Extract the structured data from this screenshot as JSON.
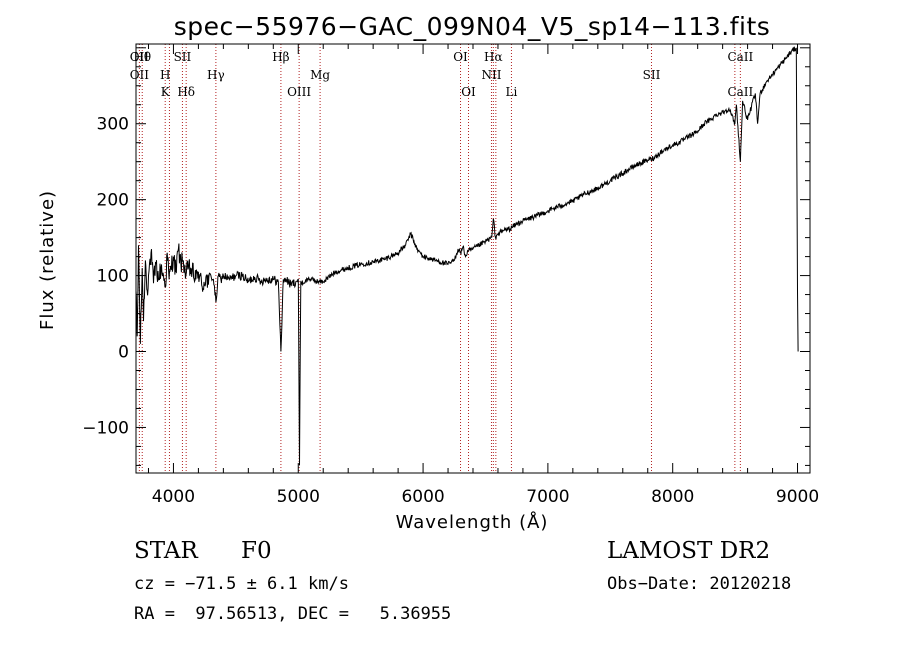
{
  "chart_data": {
    "type": "line",
    "title": "spec−55976−GAC_099N04_V5_sp14−113.fits",
    "xlabel": "Wavelength (Å)",
    "ylabel": "Flux (relative)",
    "xlim": [
      3700,
      9100
    ],
    "ylim": [
      -160,
      405
    ],
    "xticks": [
      {
        "value": 4000,
        "label": "4000"
      },
      {
        "value": 5000,
        "label": "5000"
      },
      {
        "value": 6000,
        "label": "6000"
      },
      {
        "value": 7000,
        "label": "7000"
      },
      {
        "value": 8000,
        "label": "8000"
      },
      {
        "value": 9000,
        "label": "9000"
      }
    ],
    "yticks": [
      {
        "value": -100,
        "label": "−100"
      },
      {
        "value": 0,
        "label": "0"
      },
      {
        "value": 100,
        "label": "100"
      },
      {
        "value": 200,
        "label": "200"
      },
      {
        "value": 300,
        "label": "300"
      }
    ],
    "series": [
      {
        "x": [
          3700,
          3710,
          3720,
          3735,
          3750,
          3760,
          3775,
          3790,
          3800,
          3820,
          3840,
          3860,
          3880,
          3900,
          3920,
          3935,
          3950,
          3965,
          3980,
          4000,
          4020,
          4040,
          4060,
          4080,
          4100,
          4120,
          4150,
          4180,
          4200,
          4230,
          4260,
          4280,
          4300,
          4320,
          4340,
          4360,
          4380,
          4400,
          4450,
          4500,
          4550,
          4600,
          4650,
          4700,
          4750,
          4800,
          4840,
          4861,
          4880,
          4900,
          4940,
          4980,
          5000,
          5010,
          5020,
          5040,
          5080,
          5120,
          5160,
          5200,
          5300,
          5400,
          5500,
          5600,
          5700,
          5800,
          5860,
          5900,
          5920,
          5950,
          6000,
          6100,
          6200,
          6250,
          6280,
          6300,
          6320,
          6340,
          6360,
          6400,
          6450,
          6500,
          6550,
          6563,
          6580,
          6600,
          6650,
          6700,
          6750,
          6800,
          6900,
          7000,
          7100,
          7200,
          7300,
          7400,
          7500,
          7600,
          7700,
          7800,
          7850,
          7900,
          8000,
          8050,
          8100,
          8150,
          8200,
          8250,
          8300,
          8350,
          8400,
          8450,
          8498,
          8510,
          8542,
          8560,
          8600,
          8662,
          8680,
          8700,
          8750,
          8800,
          8850,
          8900,
          8950,
          8990,
          9000,
          9005
        ],
        "y": [
          80,
          20,
          140,
          10,
          110,
          40,
          120,
          80,
          100,
          130,
          90,
          115,
          95,
          110,
          100,
          85,
          130,
          95,
          110,
          125,
          105,
          135,
          115,
          120,
          100,
          110,
          105,
          95,
          105,
          85,
          98,
          88,
          100,
          95,
          65,
          100,
          95,
          100,
          95,
          100,
          100,
          92,
          98,
          93,
          95,
          95,
          92,
          0,
          95,
          95,
          88,
          92,
          95,
          -150,
          92,
          90,
          96,
          94,
          92,
          92,
          105,
          110,
          115,
          118,
          122,
          130,
          140,
          155,
          148,
          135,
          125,
          120,
          115,
          120,
          135,
          130,
          138,
          125,
          132,
          135,
          140,
          145,
          150,
          175,
          150,
          155,
          160,
          162,
          168,
          172,
          178,
          185,
          192,
          198,
          208,
          215,
          225,
          235,
          245,
          252,
          255,
          262,
          272,
          275,
          280,
          285,
          290,
          300,
          305,
          312,
          315,
          320,
          300,
          325,
          250,
          330,
          305,
          340,
          300,
          340,
          355,
          365,
          375,
          385,
          395,
          400,
          80,
          0
        ]
      }
    ],
    "lines": [
      {
        "x": 3727,
        "labels": [
          "OII",
          "OII"
        ]
      },
      {
        "x": 3750,
        "labels": [
          "Hθ",
          "",
          ""
        ]
      },
      {
        "x": 3934,
        "labels": [
          "",
          "H",
          "K"
        ]
      },
      {
        "x": 3968,
        "labels": [
          ""
        ]
      },
      {
        "x": 4072,
        "labels": [
          "SII"
        ]
      },
      {
        "x": 4102,
        "labels": [
          "",
          "",
          "Hδ"
        ]
      },
      {
        "x": 4340,
        "labels": [
          "",
          "Hγ"
        ]
      },
      {
        "x": 4861,
        "labels": [
          "Hβ"
        ]
      },
      {
        "x": 5007,
        "labels": [
          "",
          "",
          "OIII"
        ]
      },
      {
        "x": 5175,
        "labels": [
          "",
          "Mg"
        ]
      },
      {
        "x": 6300,
        "labels": [
          "OI"
        ]
      },
      {
        "x": 6364,
        "labels": [
          "",
          "",
          "OI"
        ]
      },
      {
        "x": 6548,
        "labels": [
          "",
          "NII"
        ]
      },
      {
        "x": 6563,
        "labels": [
          "Hα"
        ]
      },
      {
        "x": 6583,
        "labels": [
          ""
        ]
      },
      {
        "x": 6708,
        "labels": [
          "",
          "",
          "Li"
        ]
      },
      {
        "x": 7830,
        "labels": [
          "",
          "SII"
        ]
      },
      {
        "x": 8498,
        "labels": [
          ""
        ]
      },
      {
        "x": 8542,
        "labels": [
          "CaII",
          "",
          "CaII"
        ]
      }
    ]
  },
  "info": {
    "object_class": "STAR",
    "subclass": "F0",
    "survey": "LAMOST DR2",
    "redshift": "cz = −71.5 ± 6.1 km/s",
    "obs_date": "Obs−Date: 20120218",
    "coords": "RA =  97.56513, DEC =   5.36955"
  }
}
